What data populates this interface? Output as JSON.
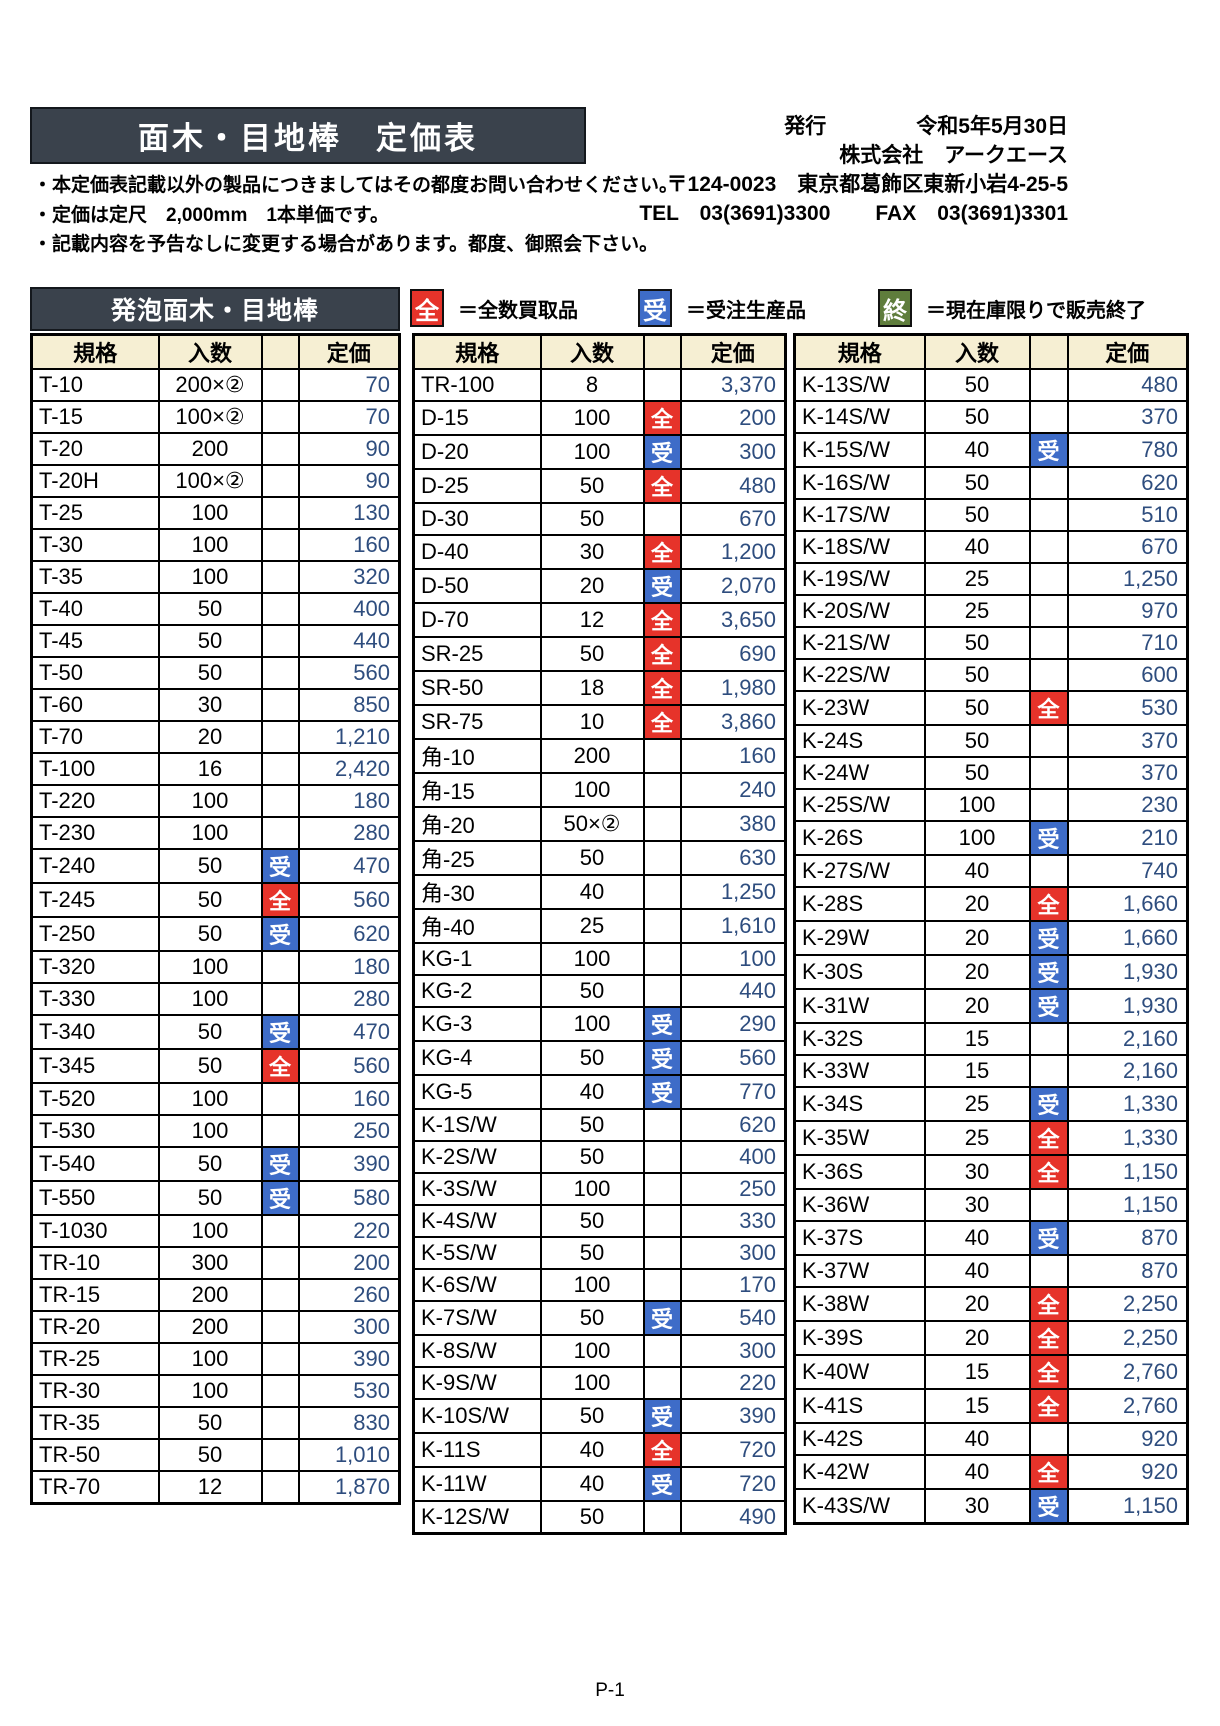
{
  "page": {
    "title": "面木・目地棒　定価表",
    "footer": "P-1"
  },
  "issue": {
    "label": "発行",
    "date": "令和5年5月30日",
    "company": "株式会社　アークエース",
    "address": "〒124-0023　東京都葛飾区東新小岩4-25-5",
    "tel": "TEL　03(3691)3300",
    "fax": "FAX　03(3691)3301"
  },
  "notes": [
    "・本定価表記載以外の製品につきましてはその都度お問い合わせください。",
    "・定価は定尺　2,000mm　1本単価です。",
    "・記載内容を予告なしに変更する場合があります。都度、御照会下さい。"
  ],
  "section": {
    "title": "発泡面木・目地棒"
  },
  "legend": [
    {
      "mark": "全",
      "color": "#e6332a",
      "text": "＝全数買取品"
    },
    {
      "mark": "受",
      "color": "#3e6cc8",
      "text": "＝受注生産品"
    },
    {
      "mark": "終",
      "color": "#5f7d3c",
      "text": "＝現在庫限りで販売終了"
    }
  ],
  "colors": {
    "header_bar": "#3a424c",
    "table_header_bg": "#f6efd3",
    "price_text": "#2e4d7e",
    "mark_zen": "#e6332a",
    "mark_ju": "#3e6cc8",
    "mark_shu": "#5f7d3c"
  },
  "table_headers": [
    "規格",
    "入数",
    "",
    "定価"
  ],
  "tables": [
    {
      "rows": [
        [
          "T-10",
          "200×②",
          "",
          "70"
        ],
        [
          "T-15",
          "100×②",
          "",
          "70"
        ],
        [
          "T-20",
          "200",
          "",
          "90"
        ],
        [
          "T-20H",
          "100×②",
          "",
          "90"
        ],
        [
          "T-25",
          "100",
          "",
          "130"
        ],
        [
          "T-30",
          "100",
          "",
          "160"
        ],
        [
          "T-35",
          "100",
          "",
          "320"
        ],
        [
          "T-40",
          "50",
          "",
          "400"
        ],
        [
          "T-45",
          "50",
          "",
          "440"
        ],
        [
          "T-50",
          "50",
          "",
          "560"
        ],
        [
          "T-60",
          "30",
          "",
          "850"
        ],
        [
          "T-70",
          "20",
          "",
          "1,210"
        ],
        [
          "T-100",
          "16",
          "",
          "2,420"
        ],
        [
          "T-220",
          "100",
          "",
          "180"
        ],
        [
          "T-230",
          "100",
          "",
          "280"
        ],
        [
          "T-240",
          "50",
          "受",
          "470"
        ],
        [
          "T-245",
          "50",
          "全",
          "560"
        ],
        [
          "T-250",
          "50",
          "受",
          "620"
        ],
        [
          "T-320",
          "100",
          "",
          "180"
        ],
        [
          "T-330",
          "100",
          "",
          "280"
        ],
        [
          "T-340",
          "50",
          "受",
          "470"
        ],
        [
          "T-345",
          "50",
          "全",
          "560"
        ],
        [
          "T-520",
          "100",
          "",
          "160"
        ],
        [
          "T-530",
          "100",
          "",
          "250"
        ],
        [
          "T-540",
          "50",
          "受",
          "390"
        ],
        [
          "T-550",
          "50",
          "受",
          "580"
        ],
        [
          "T-1030",
          "100",
          "",
          "220"
        ],
        [
          "TR-10",
          "300",
          "",
          "200"
        ],
        [
          "TR-15",
          "200",
          "",
          "260"
        ],
        [
          "TR-20",
          "200",
          "",
          "300"
        ],
        [
          "TR-25",
          "100",
          "",
          "390"
        ],
        [
          "TR-30",
          "100",
          "",
          "530"
        ],
        [
          "TR-35",
          "50",
          "",
          "830"
        ],
        [
          "TR-50",
          "50",
          "",
          "1,010"
        ],
        [
          "TR-70",
          "12",
          "",
          "1,870"
        ]
      ]
    },
    {
      "rows": [
        [
          "TR-100",
          "8",
          "",
          "3,370"
        ],
        [
          "D-15",
          "100",
          "全",
          "200"
        ],
        [
          "D-20",
          "100",
          "受",
          "300"
        ],
        [
          "D-25",
          "50",
          "全",
          "480"
        ],
        [
          "D-30",
          "50",
          "",
          "670"
        ],
        [
          "D-40",
          "30",
          "全",
          "1,200"
        ],
        [
          "D-50",
          "20",
          "受",
          "2,070"
        ],
        [
          "D-70",
          "12",
          "全",
          "3,650"
        ],
        [
          "SR-25",
          "50",
          "全",
          "690"
        ],
        [
          "SR-50",
          "18",
          "全",
          "1,980"
        ],
        [
          "SR-75",
          "10",
          "全",
          "3,860"
        ],
        [
          "角-10",
          "200",
          "",
          "160"
        ],
        [
          "角-15",
          "100",
          "",
          "240"
        ],
        [
          "角-20",
          "50×②",
          "",
          "380"
        ],
        [
          "角-25",
          "50",
          "",
          "630"
        ],
        [
          "角-30",
          "40",
          "",
          "1,250"
        ],
        [
          "角-40",
          "25",
          "",
          "1,610"
        ],
        [
          "KG-1",
          "100",
          "",
          "100"
        ],
        [
          "KG-2",
          "50",
          "",
          "440"
        ],
        [
          "KG-3",
          "100",
          "受",
          "290"
        ],
        [
          "KG-4",
          "50",
          "受",
          "560"
        ],
        [
          "KG-5",
          "40",
          "受",
          "770"
        ],
        [
          "K-1S/W",
          "50",
          "",
          "620"
        ],
        [
          "K-2S/W",
          "50",
          "",
          "400"
        ],
        [
          "K-3S/W",
          "100",
          "",
          "250"
        ],
        [
          "K-4S/W",
          "50",
          "",
          "330"
        ],
        [
          "K-5S/W",
          "50",
          "",
          "300"
        ],
        [
          "K-6S/W",
          "100",
          "",
          "170"
        ],
        [
          "K-7S/W",
          "50",
          "受",
          "540"
        ],
        [
          "K-8S/W",
          "100",
          "",
          "300"
        ],
        [
          "K-9S/W",
          "100",
          "",
          "220"
        ],
        [
          "K-10S/W",
          "50",
          "受",
          "390"
        ],
        [
          "K-11S",
          "40",
          "全",
          "720"
        ],
        [
          "K-11W",
          "40",
          "受",
          "720"
        ],
        [
          "K-12S/W",
          "50",
          "",
          "490"
        ]
      ]
    },
    {
      "rows": [
        [
          "K-13S/W",
          "50",
          "",
          "480"
        ],
        [
          "K-14S/W",
          "50",
          "",
          "370"
        ],
        [
          "K-15S/W",
          "40",
          "受",
          "780"
        ],
        [
          "K-16S/W",
          "50",
          "",
          "620"
        ],
        [
          "K-17S/W",
          "50",
          "",
          "510"
        ],
        [
          "K-18S/W",
          "40",
          "",
          "670"
        ],
        [
          "K-19S/W",
          "25",
          "",
          "1,250"
        ],
        [
          "K-20S/W",
          "25",
          "",
          "970"
        ],
        [
          "K-21S/W",
          "50",
          "",
          "710"
        ],
        [
          "K-22S/W",
          "50",
          "",
          "600"
        ],
        [
          "K-23W",
          "50",
          "全",
          "530"
        ],
        [
          "K-24S",
          "50",
          "",
          "370"
        ],
        [
          "K-24W",
          "50",
          "",
          "370"
        ],
        [
          "K-25S/W",
          "100",
          "",
          "230"
        ],
        [
          "K-26S",
          "100",
          "受",
          "210"
        ],
        [
          "K-27S/W",
          "40",
          "",
          "740"
        ],
        [
          "K-28S",
          "20",
          "全",
          "1,660"
        ],
        [
          "K-29W",
          "20",
          "受",
          "1,660"
        ],
        [
          "K-30S",
          "20",
          "受",
          "1,930"
        ],
        [
          "K-31W",
          "20",
          "受",
          "1,930"
        ],
        [
          "K-32S",
          "15",
          "",
          "2,160"
        ],
        [
          "K-33W",
          "15",
          "",
          "2,160"
        ],
        [
          "K-34S",
          "25",
          "受",
          "1,330"
        ],
        [
          "K-35W",
          "25",
          "全",
          "1,330"
        ],
        [
          "K-36S",
          "30",
          "全",
          "1,150"
        ],
        [
          "K-36W",
          "30",
          "",
          "1,150"
        ],
        [
          "K-37S",
          "40",
          "受",
          "870"
        ],
        [
          "K-37W",
          "40",
          "",
          "870"
        ],
        [
          "K-38W",
          "20",
          "全",
          "2,250"
        ],
        [
          "K-39S",
          "20",
          "全",
          "2,250"
        ],
        [
          "K-40W",
          "15",
          "全",
          "2,760"
        ],
        [
          "K-41S",
          "15",
          "全",
          "2,760"
        ],
        [
          "K-42S",
          "40",
          "",
          "920"
        ],
        [
          "K-42W",
          "40",
          "全",
          "920"
        ],
        [
          "K-43S/W",
          "30",
          "受",
          "1,150"
        ]
      ]
    }
  ]
}
